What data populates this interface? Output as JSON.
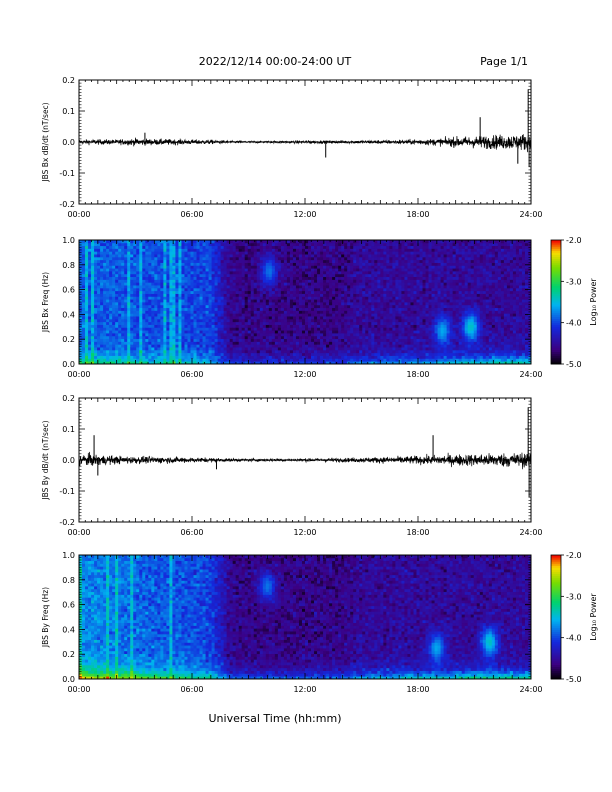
{
  "header": {
    "title": "2022/12/14  00:00-24:00 UT",
    "page": "Page 1/1"
  },
  "xlabel": "Universal Time (hh:mm)",
  "chart_data": [
    {
      "type": "line",
      "ylabel": "JBS Bx dB/dt (nT/sec)",
      "xlim": [
        0,
        24
      ],
      "ylim": [
        -0.2,
        0.2
      ],
      "xticks": [
        "00:00",
        "06:00",
        "12:00",
        "18:00",
        "24:00"
      ],
      "yticks": [
        "-0.2",
        "-0.1",
        "0.0",
        "0.1",
        "0.2"
      ],
      "series": [
        {
          "x": [
            0,
            1,
            2,
            3,
            4,
            5,
            6,
            7,
            8,
            9,
            10,
            11,
            12,
            13,
            14,
            15,
            16,
            17,
            18,
            19,
            20,
            21,
            22,
            23,
            24
          ],
          "amplitude": [
            0.012,
            0.013,
            0.012,
            0.018,
            0.015,
            0.014,
            0.012,
            0.011,
            0.006,
            0.005,
            0.005,
            0.006,
            0.008,
            0.007,
            0.008,
            0.008,
            0.009,
            0.011,
            0.013,
            0.017,
            0.025,
            0.03,
            0.035,
            0.038,
            0.045
          ],
          "spikes": [
            {
              "x": 3.5,
              "y": 0.03
            },
            {
              "x": 13.1,
              "y": -0.05
            },
            {
              "x": 21.3,
              "y": 0.08
            },
            {
              "x": 23.3,
              "y": -0.07
            },
            {
              "x": 23.85,
              "y": 0.17
            },
            {
              "x": 23.9,
              "y": -0.08
            }
          ]
        }
      ]
    },
    {
      "type": "heatmap",
      "ylabel": "JBS Bx Freq (Hz)",
      "xlim": [
        0,
        24
      ],
      "ylim": [
        0,
        1.0
      ],
      "xticks": [
        "00:00",
        "06:00",
        "12:00",
        "18:00",
        "24:00"
      ],
      "yticks": [
        "0.0",
        "0.2",
        "0.4",
        "0.6",
        "0.8",
        "1.0"
      ],
      "colorbar": {
        "label": "Log₁₀ Power",
        "ticks": [
          "-2.0",
          "-3.0",
          "-4.0",
          "-5.0"
        ],
        "range": [
          -5.0,
          -2.0
        ]
      },
      "background": [
        -3.9,
        -3.9,
        -3.9,
        -3.95,
        -3.95,
        -3.95,
        -4.0,
        -4.0,
        -4.55,
        -4.6,
        -4.6,
        -4.6,
        -4.6,
        -4.6,
        -4.6,
        -4.5,
        -4.5,
        -4.5,
        -4.5,
        -4.5,
        -4.5,
        -4.5,
        -4.5,
        -4.5,
        -4.5
      ],
      "low_freq_boost": [
        0.9,
        0.9,
        0.8,
        0.8,
        0.7,
        0.7,
        0.7,
        0.6,
        0.6,
        0.6,
        0.6,
        0.6,
        0.6,
        0.7,
        0.7,
        0.8,
        0.9,
        1.0,
        1.0,
        1.1,
        1.2,
        1.3,
        1.4,
        1.4,
        1.5
      ],
      "features": [
        {
          "t": 20.8,
          "f": 0.3,
          "level": -3.4
        },
        {
          "t": 19.3,
          "f": 0.27,
          "level": -3.6
        },
        {
          "t": 10.1,
          "f": 0.75,
          "level": -3.8
        }
      ]
    },
    {
      "type": "line",
      "ylabel": "JBS By dB/dt (nT/sec)",
      "xlim": [
        0,
        24
      ],
      "ylim": [
        -0.2,
        0.2
      ],
      "xticks": [
        "00:00",
        "06:00",
        "12:00",
        "18:00",
        "24:00"
      ],
      "yticks": [
        "-0.2",
        "-0.1",
        "0.0",
        "0.1",
        "0.2"
      ],
      "series": [
        {
          "x": [
            0,
            1,
            2,
            3,
            4,
            5,
            6,
            7,
            8,
            9,
            10,
            11,
            12,
            13,
            14,
            15,
            16,
            17,
            18,
            19,
            20,
            21,
            22,
            23,
            24
          ],
          "amplitude": [
            0.035,
            0.028,
            0.02,
            0.018,
            0.017,
            0.015,
            0.013,
            0.011,
            0.008,
            0.007,
            0.007,
            0.007,
            0.008,
            0.009,
            0.01,
            0.012,
            0.015,
            0.018,
            0.021,
            0.024,
            0.028,
            0.03,
            0.033,
            0.036,
            0.04
          ],
          "spikes": [
            {
              "x": 0.8,
              "y": 0.08
            },
            {
              "x": 1.0,
              "y": -0.05
            },
            {
              "x": 7.3,
              "y": -0.03
            },
            {
              "x": 18.8,
              "y": 0.08
            },
            {
              "x": 23.85,
              "y": 0.17
            },
            {
              "x": 23.9,
              "y": -0.12
            }
          ]
        }
      ]
    },
    {
      "type": "heatmap",
      "ylabel": "JBS By Freq (Hz)",
      "xlim": [
        0,
        24
      ],
      "ylim": [
        0,
        1.0
      ],
      "xticks": [
        "00:00",
        "06:00",
        "12:00",
        "18:00",
        "24:00"
      ],
      "yticks": [
        "0.0",
        "0.2",
        "0.4",
        "0.6",
        "0.8",
        "1.0"
      ],
      "colorbar": {
        "label": "Log₁₀ Power",
        "ticks": [
          "-2.0",
          "-3.0",
          "-4.0",
          "-5.0"
        ],
        "range": [
          -5.0,
          -2.0
        ]
      },
      "background": [
        -3.7,
        -3.75,
        -3.8,
        -3.85,
        -3.9,
        -3.9,
        -3.95,
        -4.0,
        -4.55,
        -4.6,
        -4.6,
        -4.6,
        -4.6,
        -4.6,
        -4.6,
        -4.5,
        -4.5,
        -4.5,
        -4.5,
        -4.5,
        -4.5,
        -4.5,
        -4.5,
        -4.5,
        -4.5
      ],
      "low_freq_boost": [
        1.6,
        1.5,
        1.4,
        1.3,
        1.2,
        1.1,
        1.0,
        0.9,
        0.8,
        0.8,
        0.8,
        0.8,
        0.8,
        0.9,
        0.9,
        1.0,
        1.1,
        1.2,
        1.3,
        1.3,
        1.4,
        1.5,
        1.5,
        1.5,
        1.6
      ],
      "features": [
        {
          "t": 21.8,
          "f": 0.3,
          "level": -3.4
        },
        {
          "t": 19.0,
          "f": 0.25,
          "level": -3.6
        },
        {
          "t": 10.0,
          "f": 0.75,
          "level": -3.8
        }
      ]
    }
  ]
}
